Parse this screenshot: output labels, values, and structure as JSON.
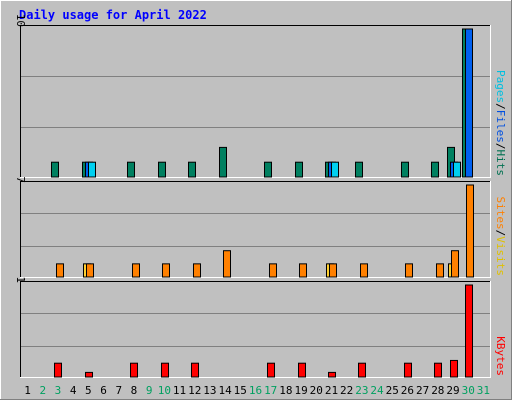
{
  "chart_data": {
    "type": "bar",
    "title": "Daily usage for April 2022",
    "days": [
      "1",
      "2",
      "3",
      "4",
      "5",
      "6",
      "7",
      "8",
      "9",
      "10",
      "11",
      "12",
      "13",
      "14",
      "15",
      "16",
      "17",
      "18",
      "19",
      "20",
      "21",
      "22",
      "23",
      "24",
      "25",
      "26",
      "27",
      "28",
      "29",
      "30",
      "31"
    ],
    "weekend_days": [
      "2",
      "3",
      "9",
      "10",
      "16",
      "17",
      "23",
      "24",
      "30",
      "31"
    ],
    "panels": [
      {
        "key": "hits",
        "ymax_label": "10",
        "ymax": 10,
        "labels": [
          {
            "text": "Pages",
            "color": "#00c0e0"
          },
          {
            "text": "/",
            "color": "#000000"
          },
          {
            "text": "Files",
            "color": "#0050e0"
          },
          {
            "text": "/",
            "color": "#000000"
          },
          {
            "text": "Hits",
            "color": "#007050"
          }
        ],
        "series": [
          {
            "name": "Hits",
            "color": "#008060",
            "values": [
              0,
              0,
              1,
              0,
              1,
              0,
              0,
              1,
              0,
              1,
              0,
              1,
              0,
              2,
              0,
              0,
              1,
              0,
              1,
              0,
              1,
              0,
              1,
              0,
              0,
              1,
              0,
              1,
              2,
              10,
              0
            ]
          },
          {
            "name": "Files",
            "color": "#0060f0",
            "values": [
              0,
              0,
              0,
              0,
              1,
              0,
              0,
              0,
              0,
              0,
              0,
              0,
              0,
              0,
              0,
              0,
              0,
              0,
              0,
              0,
              1,
              0,
              0,
              0,
              0,
              0,
              0,
              0,
              1,
              10,
              0
            ]
          },
          {
            "name": "Pages",
            "color": "#00d0f0",
            "values": [
              0,
              0,
              0,
              0,
              1,
              0,
              0,
              0,
              0,
              0,
              0,
              0,
              0,
              0,
              0,
              0,
              0,
              0,
              0,
              0,
              1,
              0,
              0,
              0,
              0,
              0,
              0,
              0,
              1,
              0,
              0
            ]
          }
        ]
      },
      {
        "key": "sites",
        "ymax_label": "7",
        "ymax": 7,
        "labels": [
          {
            "text": "Sites",
            "color": "#ff8000"
          },
          {
            "text": "/",
            "color": "#000000"
          },
          {
            "text": "Visits",
            "color": "#e0c000"
          }
        ],
        "series": [
          {
            "name": "Visits",
            "color": "#ffd030",
            "values": [
              0,
              0,
              0,
              0,
              1,
              0,
              0,
              0,
              0,
              0,
              0,
              0,
              0,
              0,
              0,
              0,
              0,
              0,
              0,
              0,
              1,
              0,
              0,
              0,
              0,
              0,
              0,
              0,
              1,
              0,
              0
            ]
          },
          {
            "name": "Sites",
            "color": "#ff8000",
            "values": [
              0,
              0,
              1,
              0,
              1,
              0,
              0,
              1,
              0,
              1,
              0,
              1,
              0,
              2,
              0,
              0,
              1,
              0,
              1,
              0,
              1,
              0,
              1,
              0,
              0,
              1,
              0,
              1,
              2,
              7,
              0
            ]
          }
        ]
      },
      {
        "key": "kbytes",
        "ymax_label": "1",
        "ymax": 1,
        "labels": [
          {
            "text": "KBytes",
            "color": "#ff0000"
          }
        ],
        "series": [
          {
            "name": "KBytes",
            "color": "#ff0000",
            "values": [
              0,
              0,
              0.15,
              0,
              0.05,
              0,
              0,
              0.15,
              0,
              0.15,
              0,
              0.15,
              0,
              0,
              0,
              0,
              0.15,
              0,
              0.15,
              0,
              0.05,
              0,
              0.15,
              0,
              0,
              0.15,
              0,
              0.15,
              0.18,
              1,
              0
            ]
          }
        ]
      }
    ]
  }
}
